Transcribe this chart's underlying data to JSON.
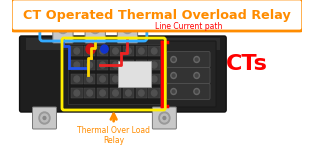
{
  "title": "CT Operated Thermal Overload Relay",
  "title_color": "#FF8C00",
  "title_box_color": "#FF8C00",
  "background_color": "#ffffff",
  "label_line_current": "Line Current path",
  "label_line_current_color": "#FF0000",
  "label_cts": "CTs",
  "label_cts_color": "#FF0000",
  "label_relay": "Thermal Over Load\nRelay",
  "label_relay_color": "#FF8C00",
  "box_line_current_color": "#33AAFF",
  "box_cts_color": "#FF0000",
  "box_relay_color": "#FFEE00",
  "wire_blue": "#2255EE",
  "wire_yellow": "#FFD700",
  "wire_red": "#EE2222",
  "body_dark": "#2a2a2a",
  "body_mid": "#3a3a3a",
  "metal_light": "#c8c8c8",
  "metal_mid": "#999999",
  "metal_dark": "#777777"
}
